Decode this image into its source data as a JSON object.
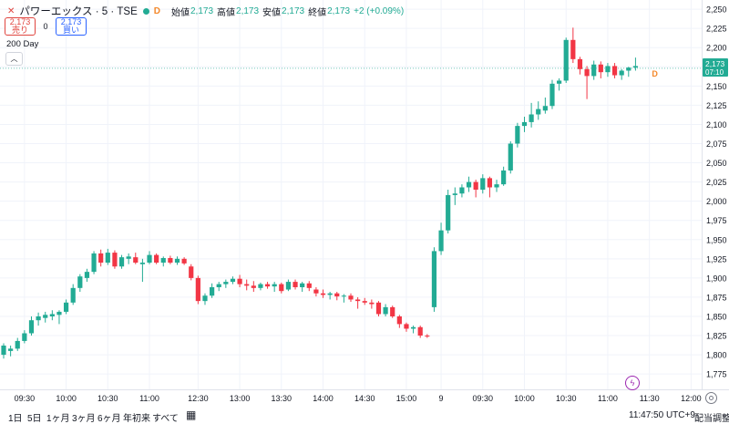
{
  "header": {
    "close_icon": "close-icon",
    "symbol": "パワーエックス · 5 · TSE",
    "market_status": "D",
    "open_label": "始値",
    "open_value": "2,173",
    "high_label": "高値",
    "high_value": "2,173",
    "low_label": "安値",
    "low_value": "2,173",
    "close_label": "終値",
    "close_value": "2,173",
    "change": "+2 (+0.09%)"
  },
  "trade": {
    "sell_price": "2,173",
    "sell_label": "売り",
    "spread": "0",
    "buy_price": "2,173",
    "buy_label": "買い"
  },
  "indicator": "200 Day",
  "price_label": {
    "price": "2,173",
    "countdown": "07:10"
  },
  "session_marker": "D",
  "bottom_bar": {
    "ranges": [
      "1日",
      "5日",
      "1ヶ月",
      "3ヶ月",
      "6ヶ月",
      "年初来",
      "すべて"
    ],
    "time": "11:47:50 UTC+9",
    "adjust": "配当調整"
  },
  "colors": {
    "up": "#22ab94",
    "down": "#f23645",
    "grid": "#f0f3fa",
    "accent": "#2962ff"
  },
  "chart_data": {
    "type": "candlestick",
    "ylim": [
      1755,
      2262
    ],
    "y_ticks": [
      1775,
      1800,
      1825,
      1850,
      1875,
      1900,
      1925,
      1950,
      1975,
      2000,
      2025,
      2050,
      2075,
      2100,
      2125,
      2150,
      2175,
      2200,
      2225,
      2250
    ],
    "y_tick_labels": [
      "1,775",
      "1,800",
      "1,825",
      "1,850",
      "1,875",
      "1,900",
      "1,925",
      "1,950",
      "1,975",
      "2,000",
      "2,025",
      "2,050",
      "2,075",
      "2,100",
      "2,125",
      "2,150",
      "2,175",
      "2,200",
      "2,225",
      "2,250"
    ],
    "x_tick_labels": [
      {
        "i": 3,
        "label": "09:30"
      },
      {
        "i": 9,
        "label": "10:00"
      },
      {
        "i": 15,
        "label": "10:30"
      },
      {
        "i": 21,
        "label": "11:00"
      },
      {
        "i": 28,
        "label": "12:30"
      },
      {
        "i": 34,
        "label": "13:00"
      },
      {
        "i": 40,
        "label": "13:30"
      },
      {
        "i": 46,
        "label": "14:00"
      },
      {
        "i": 52,
        "label": "14:30"
      },
      {
        "i": 58,
        "label": "15:00"
      },
      {
        "i": 63,
        "label": "9"
      },
      {
        "i": 69,
        "label": "09:30"
      },
      {
        "i": 75,
        "label": "10:00"
      },
      {
        "i": 81,
        "label": "10:30"
      },
      {
        "i": 87,
        "label": "11:00"
      },
      {
        "i": 93,
        "label": "11:30"
      },
      {
        "i": 99,
        "label": "12:00"
      }
    ],
    "last_price": 2173,
    "candles": [
      {
        "o": 1800,
        "h": 1815,
        "l": 1795,
        "c": 1812
      },
      {
        "o": 1805,
        "h": 1812,
        "l": 1798,
        "c": 1808
      },
      {
        "o": 1808,
        "h": 1822,
        "l": 1805,
        "c": 1818
      },
      {
        "o": 1818,
        "h": 1832,
        "l": 1815,
        "c": 1828
      },
      {
        "o": 1828,
        "h": 1850,
        "l": 1825,
        "c": 1845
      },
      {
        "o": 1845,
        "h": 1855,
        "l": 1838,
        "c": 1850
      },
      {
        "o": 1848,
        "h": 1856,
        "l": 1842,
        "c": 1852
      },
      {
        "o": 1850,
        "h": 1858,
        "l": 1845,
        "c": 1853
      },
      {
        "o": 1852,
        "h": 1858,
        "l": 1840,
        "c": 1856
      },
      {
        "o": 1856,
        "h": 1872,
        "l": 1853,
        "c": 1868
      },
      {
        "o": 1868,
        "h": 1892,
        "l": 1865,
        "c": 1887
      },
      {
        "o": 1887,
        "h": 1905,
        "l": 1882,
        "c": 1902
      },
      {
        "o": 1900,
        "h": 1912,
        "l": 1895,
        "c": 1908
      },
      {
        "o": 1908,
        "h": 1935,
        "l": 1905,
        "c": 1932
      },
      {
        "o": 1932,
        "h": 1937,
        "l": 1915,
        "c": 1920
      },
      {
        "o": 1920,
        "h": 1938,
        "l": 1917,
        "c": 1933
      },
      {
        "o": 1933,
        "h": 1936,
        "l": 1912,
        "c": 1915
      },
      {
        "o": 1915,
        "h": 1930,
        "l": 1912,
        "c": 1927
      },
      {
        "o": 1925,
        "h": 1932,
        "l": 1918,
        "c": 1928
      },
      {
        "o": 1927,
        "h": 1933,
        "l": 1918,
        "c": 1920
      },
      {
        "o": 1918,
        "h": 1925,
        "l": 1895,
        "c": 1920
      },
      {
        "o": 1920,
        "h": 1935,
        "l": 1918,
        "c": 1930
      },
      {
        "o": 1930,
        "h": 1932,
        "l": 1918,
        "c": 1920
      },
      {
        "o": 1920,
        "h": 1928,
        "l": 1915,
        "c": 1926
      },
      {
        "o": 1926,
        "h": 1929,
        "l": 1918,
        "c": 1920
      },
      {
        "o": 1920,
        "h": 1928,
        "l": 1917,
        "c": 1925
      },
      {
        "o": 1925,
        "h": 1927,
        "l": 1917,
        "c": 1919
      },
      {
        "o": 1915,
        "h": 1918,
        "l": 1897,
        "c": 1900
      },
      {
        "o": 1900,
        "h": 1903,
        "l": 1866,
        "c": 1870
      },
      {
        "o": 1870,
        "h": 1880,
        "l": 1865,
        "c": 1877
      },
      {
        "o": 1877,
        "h": 1893,
        "l": 1874,
        "c": 1888
      },
      {
        "o": 1888,
        "h": 1895,
        "l": 1883,
        "c": 1892
      },
      {
        "o": 1892,
        "h": 1898,
        "l": 1887,
        "c": 1895
      },
      {
        "o": 1895,
        "h": 1902,
        "l": 1892,
        "c": 1899
      },
      {
        "o": 1899,
        "h": 1904,
        "l": 1888,
        "c": 1892
      },
      {
        "o": 1892,
        "h": 1898,
        "l": 1884,
        "c": 1890
      },
      {
        "o": 1890,
        "h": 1896,
        "l": 1882,
        "c": 1887
      },
      {
        "o": 1887,
        "h": 1894,
        "l": 1884,
        "c": 1892
      },
      {
        "o": 1892,
        "h": 1895,
        "l": 1886,
        "c": 1889
      },
      {
        "o": 1889,
        "h": 1895,
        "l": 1882,
        "c": 1892
      },
      {
        "o": 1892,
        "h": 1894,
        "l": 1880,
        "c": 1883
      },
      {
        "o": 1885,
        "h": 1898,
        "l": 1883,
        "c": 1895
      },
      {
        "o": 1895,
        "h": 1898,
        "l": 1885,
        "c": 1888
      },
      {
        "o": 1888,
        "h": 1895,
        "l": 1882,
        "c": 1893
      },
      {
        "o": 1893,
        "h": 1896,
        "l": 1883,
        "c": 1887
      },
      {
        "o": 1885,
        "h": 1888,
        "l": 1876,
        "c": 1880
      },
      {
        "o": 1880,
        "h": 1885,
        "l": 1874,
        "c": 1878
      },
      {
        "o": 1878,
        "h": 1882,
        "l": 1872,
        "c": 1880
      },
      {
        "o": 1880,
        "h": 1882,
        "l": 1871,
        "c": 1876
      },
      {
        "o": 1876,
        "h": 1879,
        "l": 1868,
        "c": 1877
      },
      {
        "o": 1877,
        "h": 1880,
        "l": 1869,
        "c": 1872
      },
      {
        "o": 1872,
        "h": 1875,
        "l": 1860,
        "c": 1870
      },
      {
        "o": 1870,
        "h": 1874,
        "l": 1865,
        "c": 1868
      },
      {
        "o": 1868,
        "h": 1872,
        "l": 1860,
        "c": 1866
      },
      {
        "o": 1868,
        "h": 1870,
        "l": 1850,
        "c": 1853
      },
      {
        "o": 1853,
        "h": 1866,
        "l": 1850,
        "c": 1862
      },
      {
        "o": 1862,
        "h": 1864,
        "l": 1848,
        "c": 1850
      },
      {
        "o": 1850,
        "h": 1852,
        "l": 1835,
        "c": 1840
      },
      {
        "o": 1840,
        "h": 1842,
        "l": 1830,
        "c": 1834
      },
      {
        "o": 1834,
        "h": 1838,
        "l": 1828,
        "c": 1836
      },
      {
        "o": 1836,
        "h": 1838,
        "l": 1822,
        "c": 1825
      },
      {
        "o": 1825,
        "h": 1827,
        "l": 1822,
        "c": 1824
      },
      {
        "o": 1862,
        "h": 1940,
        "l": 1856,
        "c": 1935
      },
      {
        "o": 1935,
        "h": 1972,
        "l": 1930,
        "c": 1962
      },
      {
        "o": 1962,
        "h": 2015,
        "l": 1958,
        "c": 2008
      },
      {
        "o": 2008,
        "h": 2018,
        "l": 1995,
        "c": 2010
      },
      {
        "o": 2010,
        "h": 2022,
        "l": 2005,
        "c": 2018
      },
      {
        "o": 2018,
        "h": 2032,
        "l": 2012,
        "c": 2025
      },
      {
        "o": 2025,
        "h": 2028,
        "l": 2005,
        "c": 2015
      },
      {
        "o": 2015,
        "h": 2035,
        "l": 2010,
        "c": 2030
      },
      {
        "o": 2030,
        "h": 2032,
        "l": 2005,
        "c": 2018
      },
      {
        "o": 2018,
        "h": 2028,
        "l": 2012,
        "c": 2022
      },
      {
        "o": 2022,
        "h": 2045,
        "l": 2020,
        "c": 2040
      },
      {
        "o": 2040,
        "h": 2078,
        "l": 2036,
        "c": 2075
      },
      {
        "o": 2075,
        "h": 2102,
        "l": 2070,
        "c": 2098
      },
      {
        "o": 2098,
        "h": 2110,
        "l": 2090,
        "c": 2103
      },
      {
        "o": 2103,
        "h": 2128,
        "l": 2096,
        "c": 2113
      },
      {
        "o": 2113,
        "h": 2130,
        "l": 2106,
        "c": 2120
      },
      {
        "o": 2118,
        "h": 2135,
        "l": 2114,
        "c": 2124
      },
      {
        "o": 2124,
        "h": 2158,
        "l": 2120,
        "c": 2153
      },
      {
        "o": 2153,
        "h": 2160,
        "l": 2144,
        "c": 2157
      },
      {
        "o": 2157,
        "h": 2213,
        "l": 2154,
        "c": 2210
      },
      {
        "o": 2210,
        "h": 2226,
        "l": 2180,
        "c": 2185
      },
      {
        "o": 2185,
        "h": 2188,
        "l": 2165,
        "c": 2172
      },
      {
        "o": 2172,
        "h": 2176,
        "l": 2133,
        "c": 2163
      },
      {
        "o": 2163,
        "h": 2183,
        "l": 2158,
        "c": 2178
      },
      {
        "o": 2178,
        "h": 2182,
        "l": 2160,
        "c": 2168
      },
      {
        "o": 2168,
        "h": 2180,
        "l": 2162,
        "c": 2176
      },
      {
        "o": 2176,
        "h": 2180,
        "l": 2160,
        "c": 2164
      },
      {
        "o": 2164,
        "h": 2172,
        "l": 2158,
        "c": 2170
      },
      {
        "o": 2170,
        "h": 2175,
        "l": 2162,
        "c": 2174
      },
      {
        "o": 2174,
        "h": 2187,
        "l": 2170,
        "c": 2176
      }
    ]
  }
}
